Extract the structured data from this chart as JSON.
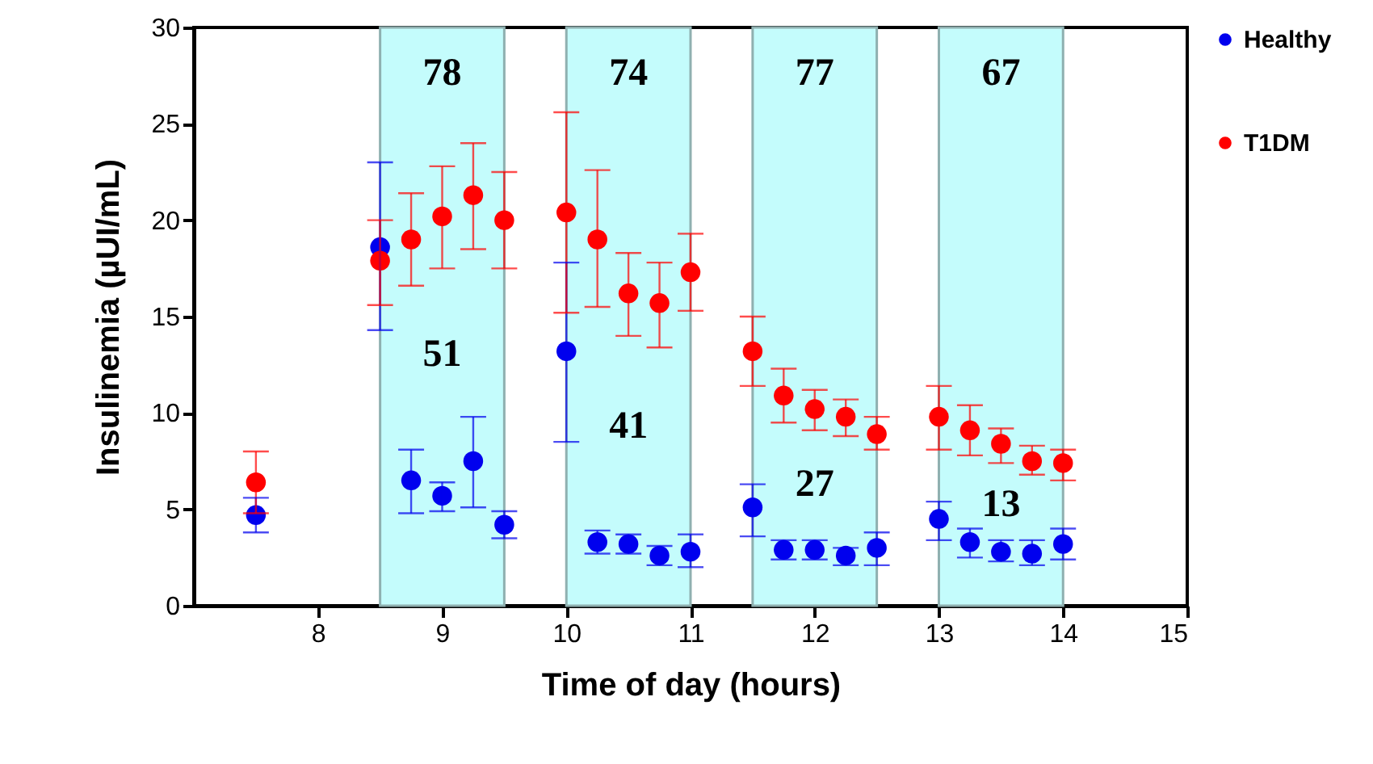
{
  "chart_data": {
    "type": "scatter",
    "xlabel": "Time of day (hours)",
    "ylabel": "Insulinemia (µUI/mL)",
    "xlim": [
      7,
      15
    ],
    "xticks": [
      8,
      9,
      10,
      11,
      12,
      13,
      14,
      15
    ],
    "ylim": [
      0,
      30
    ],
    "yticks": [
      0,
      5,
      10,
      15,
      20,
      25,
      30
    ],
    "grid": false,
    "legend": "right",
    "marker": "circle",
    "series": [
      {
        "name": "Healthy",
        "color": "#0000ee",
        "x": [
          7.5,
          8.5,
          8.75,
          9,
          9.25,
          9.5,
          10,
          10.25,
          10.5,
          10.75,
          11,
          11.5,
          11.75,
          12,
          12.25,
          12.5,
          13,
          13.25,
          13.5,
          13.75,
          14
        ],
        "values": [
          4.7,
          18.6,
          6.5,
          5.7,
          7.5,
          4.2,
          13.2,
          3.3,
          3.2,
          2.6,
          2.8,
          5.1,
          2.9,
          2.9,
          2.6,
          3.0,
          4.5,
          3.3,
          2.8,
          2.7,
          3.2
        ],
        "errors": [
          [
            3.8,
            5.6
          ],
          [
            14.3,
            23
          ],
          [
            4.8,
            8.1
          ],
          [
            4.9,
            6.4
          ],
          [
            5.1,
            9.8
          ],
          [
            3.5,
            4.9
          ],
          [
            8.5,
            17.8
          ],
          [
            2.7,
            3.9
          ],
          [
            2.7,
            3.7
          ],
          [
            2.1,
            3.1
          ],
          [
            2.0,
            3.7
          ],
          [
            3.6,
            6.3
          ],
          [
            2.4,
            3.4
          ],
          [
            2.4,
            3.4
          ],
          [
            2.1,
            3.0
          ],
          [
            2.1,
            3.8
          ],
          [
            3.4,
            5.4
          ],
          [
            2.5,
            4.0
          ],
          [
            2.3,
            3.4
          ],
          [
            2.1,
            3.4
          ],
          [
            2.4,
            4.0
          ]
        ]
      },
      {
        "name": "T1DM",
        "color": "#ff0000",
        "x": [
          7.5,
          8.5,
          8.75,
          9,
          9.25,
          9.5,
          10,
          10.25,
          10.5,
          10.75,
          11,
          11.5,
          11.75,
          12,
          12.25,
          12.5,
          13,
          13.25,
          13.5,
          13.75,
          14
        ],
        "values": [
          6.4,
          17.9,
          19.0,
          20.2,
          21.3,
          20.0,
          20.4,
          19.0,
          16.2,
          15.7,
          17.3,
          13.2,
          10.9,
          10.2,
          9.8,
          8.9,
          9.8,
          9.1,
          8.4,
          7.5,
          7.4
        ],
        "errors": [
          [
            4.8,
            8.0
          ],
          [
            15.6,
            20.0
          ],
          [
            16.6,
            21.4
          ],
          [
            17.5,
            22.8
          ],
          [
            18.5,
            24.0
          ],
          [
            17.5,
            22.5
          ],
          [
            15.2,
            25.6
          ],
          [
            15.5,
            22.6
          ],
          [
            14.0,
            18.3
          ],
          [
            13.4,
            17.8
          ],
          [
            15.3,
            19.3
          ],
          [
            11.4,
            15.0
          ],
          [
            9.5,
            12.3
          ],
          [
            9.1,
            11.2
          ],
          [
            8.8,
            10.7
          ],
          [
            8.1,
            9.8
          ],
          [
            8.1,
            11.4
          ],
          [
            7.8,
            10.4
          ],
          [
            7.4,
            9.2
          ],
          [
            6.8,
            8.3
          ],
          [
            6.5,
            8.1
          ]
        ]
      }
    ],
    "bands": [
      {
        "axis": "x",
        "from": 8.5,
        "to": 9.5,
        "color": "#c4fcfc"
      },
      {
        "axis": "x",
        "from": 10,
        "to": 11,
        "color": "#c4fcfc"
      },
      {
        "axis": "x",
        "from": 11.5,
        "to": 12.5,
        "color": "#c4fcfc"
      },
      {
        "axis": "x",
        "from": 13,
        "to": 14,
        "color": "#c4fcfc"
      }
    ],
    "annotations": [
      "78",
      "51",
      "74",
      "41",
      "77",
      "27",
      "67",
      "13"
    ]
  }
}
